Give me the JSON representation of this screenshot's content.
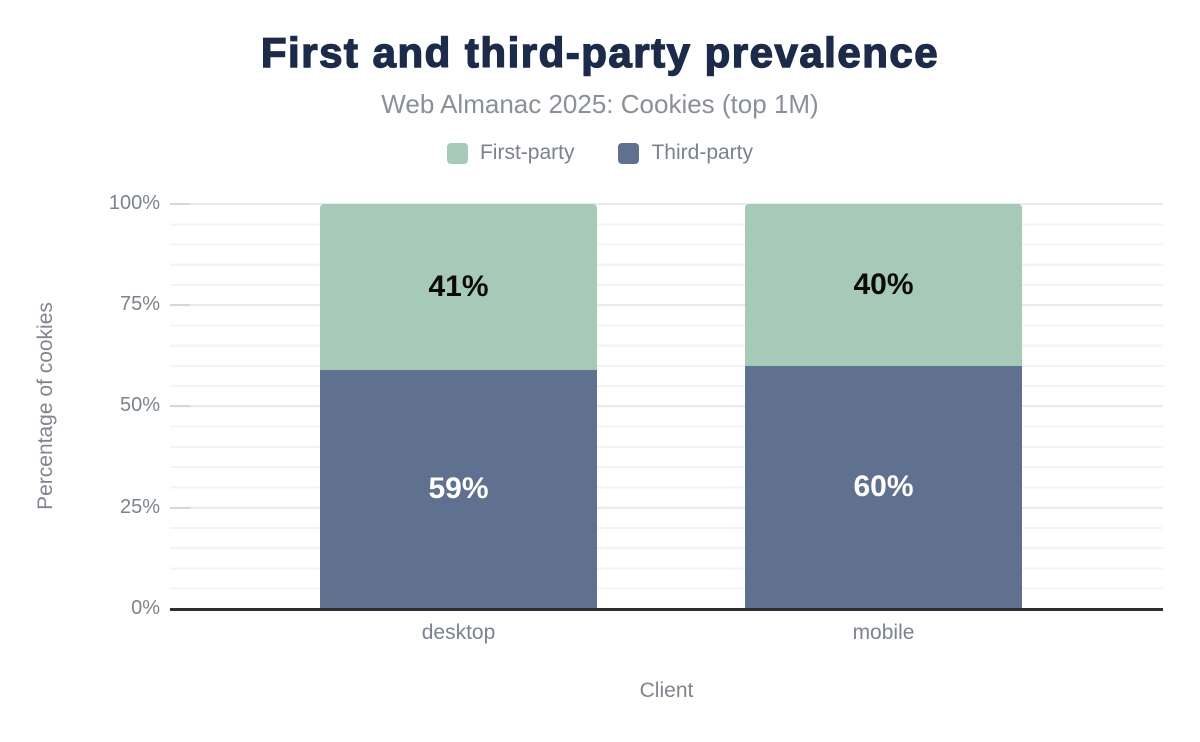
{
  "chart_data": {
    "type": "bar",
    "stacked": true,
    "title": "First and third-party prevalence",
    "subtitle": "Web Almanac 2025: Cookies (top 1M)",
    "xlabel": "Client",
    "ylabel": "Percentage of cookies",
    "categories": [
      "desktop",
      "mobile"
    ],
    "series": [
      {
        "name": "First-party",
        "color": "#a7c9b8",
        "values": [
          41,
          40
        ],
        "labels": [
          "41%",
          "40%"
        ]
      },
      {
        "name": "Third-party",
        "color": "#5f718e",
        "values": [
          59,
          60
        ],
        "labels": [
          "59%",
          "60%"
        ]
      }
    ],
    "yticks": [
      "0%",
      "25%",
      "50%",
      "75%",
      "100%"
    ],
    "ylim": [
      0,
      100
    ],
    "grid": "horizontal minor lines every 5%, major every 25%",
    "legend_position": "top",
    "colors": {
      "title": "#1c2b4a",
      "muted_text": "#8b9097",
      "axis_line": "#2f2f2f",
      "label_on_first": "#0b0b0b",
      "label_on_third": "#ffffff"
    }
  }
}
